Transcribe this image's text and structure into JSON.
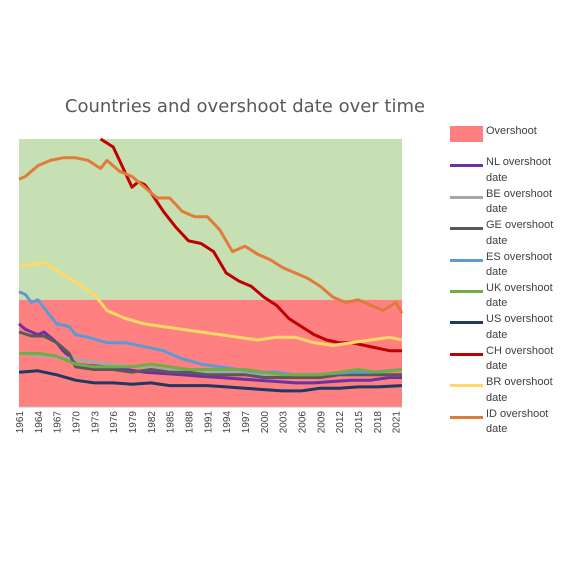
{
  "chart_data": {
    "type": "line",
    "title": "Countries and overshoot date over time",
    "xlabel": "",
    "ylabel": "",
    "x_tick_labels": [
      "1961",
      "1964",
      "1967",
      "1970",
      "1973",
      "1976",
      "1979",
      "1982",
      "1985",
      "1988",
      "1991",
      "1994",
      "1997",
      "2000",
      "2003",
      "2006",
      "2009",
      "2012",
      "2015",
      "2018",
      "2021"
    ],
    "x_range": [
      1961,
      2022
    ],
    "y_range": [
      0,
      1
    ],
    "background": {
      "upper_color": "#c6e0b4",
      "overshoot_color": "#ff8080",
      "overshoot_upper_level": 0.4
    },
    "legend_position": "right",
    "grid": false,
    "series": [
      {
        "name": "Overshoot",
        "kind": "band",
        "color": "#ff8080"
      },
      {
        "name": "NL overshoot date",
        "color": "#7030a0",
        "x": [
          1961,
          1962,
          1963,
          1964,
          1965,
          1966,
          1967,
          1968,
          1969,
          1970,
          1972,
          1975,
          1978,
          1981,
          1984,
          1987,
          1990,
          1993,
          1996,
          1999,
          2002,
          2005,
          2008,
          2011,
          2014,
          2017,
          2020,
          2022
        ],
        "y": [
          0.31,
          0.29,
          0.28,
          0.27,
          0.28,
          0.26,
          0.24,
          0.21,
          0.19,
          0.16,
          0.155,
          0.15,
          0.14,
          0.13,
          0.125,
          0.12,
          0.115,
          0.11,
          0.105,
          0.1,
          0.095,
          0.09,
          0.09,
          0.095,
          0.1,
          0.1,
          0.11,
          0.11
        ]
      },
      {
        "name": "BE overshoot date",
        "color": "#a6a6a6",
        "x": [
          1961,
          1965,
          1970,
          1975,
          1980,
          1985,
          1990,
          1995,
          2000,
          2005,
          2010,
          2015,
          2020,
          2022
        ],
        "y": [
          0.2,
          0.19,
          0.18,
          0.16,
          0.15,
          0.14,
          0.13,
          0.13,
          0.12,
          0.12,
          0.12,
          0.12,
          0.12,
          0.12
        ]
      },
      {
        "name": "GE overshoot date",
        "color": "#595959",
        "x": [
          1961,
          1963,
          1965,
          1967,
          1969,
          1970,
          1973,
          1976,
          1979,
          1982,
          1985,
          1988,
          1991,
          1994,
          1997,
          2000,
          2003,
          2006,
          2009,
          2012,
          2015,
          2018,
          2022
        ],
        "y": [
          0.28,
          0.265,
          0.265,
          0.24,
          0.2,
          0.15,
          0.14,
          0.14,
          0.13,
          0.14,
          0.13,
          0.13,
          0.12,
          0.12,
          0.12,
          0.11,
          0.11,
          0.11,
          0.11,
          0.12,
          0.12,
          0.12,
          0.12
        ]
      },
      {
        "name": "ES overshoot date",
        "color": "#5b9bd5",
        "x": [
          1961,
          1962,
          1963,
          1964,
          1965,
          1967,
          1969,
          1970,
          1972,
          1975,
          1978,
          1981,
          1984,
          1987,
          1990,
          1993,
          1996,
          1999,
          2002,
          2005,
          2008,
          2011,
          2014,
          2017,
          2022
        ],
        "y": [
          0.43,
          0.42,
          0.39,
          0.4,
          0.37,
          0.31,
          0.3,
          0.27,
          0.26,
          0.24,
          0.24,
          0.225,
          0.21,
          0.18,
          0.16,
          0.15,
          0.14,
          0.13,
          0.13,
          0.12,
          0.12,
          0.125,
          0.13,
          0.13,
          0.14
        ]
      },
      {
        "name": "UK overshoot date",
        "color": "#70ad47",
        "x": [
          1961,
          1964,
          1967,
          1970,
          1973,
          1976,
          1979,
          1982,
          1985,
          1988,
          1991,
          1994,
          1997,
          2000,
          2003,
          2006,
          2009,
          2012,
          2015,
          2018,
          2022
        ],
        "y": [
          0.2,
          0.2,
          0.19,
          0.16,
          0.15,
          0.15,
          0.15,
          0.16,
          0.15,
          0.14,
          0.14,
          0.14,
          0.14,
          0.13,
          0.12,
          0.12,
          0.12,
          0.13,
          0.14,
          0.13,
          0.14
        ]
      },
      {
        "name": "US overshoot date",
        "color": "#1f3864",
        "x": [
          1961,
          1964,
          1967,
          1970,
          1973,
          1976,
          1979,
          1982,
          1985,
          1988,
          1991,
          1994,
          1997,
          2000,
          2003,
          2006,
          2009,
          2012,
          2015,
          2018,
          2022
        ],
        "y": [
          0.13,
          0.135,
          0.12,
          0.1,
          0.09,
          0.09,
          0.085,
          0.09,
          0.08,
          0.08,
          0.08,
          0.075,
          0.07,
          0.065,
          0.06,
          0.06,
          0.07,
          0.07,
          0.075,
          0.075,
          0.08
        ]
      },
      {
        "name": "CH overshoot date",
        "color": "#c00000",
        "x": [
          1974,
          1976,
          1977,
          1978,
          1979,
          1980,
          1981,
          1982,
          1984,
          1986,
          1988,
          1990,
          1992,
          1994,
          1996,
          1998,
          2000,
          2002,
          2004,
          2006,
          2008,
          2010,
          2012,
          2014,
          2016,
          2018,
          2020,
          2022
        ],
        "y": [
          1.0,
          0.97,
          0.92,
          0.87,
          0.82,
          0.84,
          0.83,
          0.8,
          0.73,
          0.67,
          0.62,
          0.61,
          0.58,
          0.5,
          0.47,
          0.45,
          0.41,
          0.38,
          0.33,
          0.3,
          0.27,
          0.25,
          0.24,
          0.24,
          0.23,
          0.22,
          0.21,
          0.21
        ]
      },
      {
        "name": "BR overshoot date",
        "color": "#ffd966",
        "x": [
          1961,
          1963,
          1965,
          1967,
          1969,
          1971,
          1973,
          1975,
          1978,
          1981,
          1984,
          1987,
          1990,
          1993,
          1996,
          1999,
          2002,
          2005,
          2008,
          2011,
          2014,
          2017,
          2020,
          2022
        ],
        "y": [
          0.53,
          0.53,
          0.54,
          0.51,
          0.48,
          0.45,
          0.42,
          0.36,
          0.33,
          0.31,
          0.3,
          0.29,
          0.28,
          0.27,
          0.26,
          0.25,
          0.26,
          0.26,
          0.24,
          0.23,
          0.24,
          0.25,
          0.26,
          0.25
        ]
      },
      {
        "name": "ID overshoot date",
        "color": "#e07b39",
        "x": [
          1961,
          1962,
          1964,
          1966,
          1968,
          1970,
          1972,
          1974,
          1975,
          1977,
          1979,
          1981,
          1983,
          1985,
          1987,
          1989,
          1991,
          1993,
          1995,
          1997,
          1999,
          2001,
          2003,
          2005,
          2007,
          2009,
          2011,
          2013,
          2015,
          2017,
          2019,
          2021,
          2022
        ],
        "y": [
          0.85,
          0.86,
          0.9,
          0.92,
          0.93,
          0.93,
          0.92,
          0.89,
          0.92,
          0.88,
          0.86,
          0.82,
          0.78,
          0.78,
          0.73,
          0.71,
          0.71,
          0.66,
          0.58,
          0.6,
          0.57,
          0.55,
          0.52,
          0.5,
          0.48,
          0.45,
          0.41,
          0.39,
          0.4,
          0.38,
          0.36,
          0.39,
          0.35
        ]
      }
    ]
  }
}
